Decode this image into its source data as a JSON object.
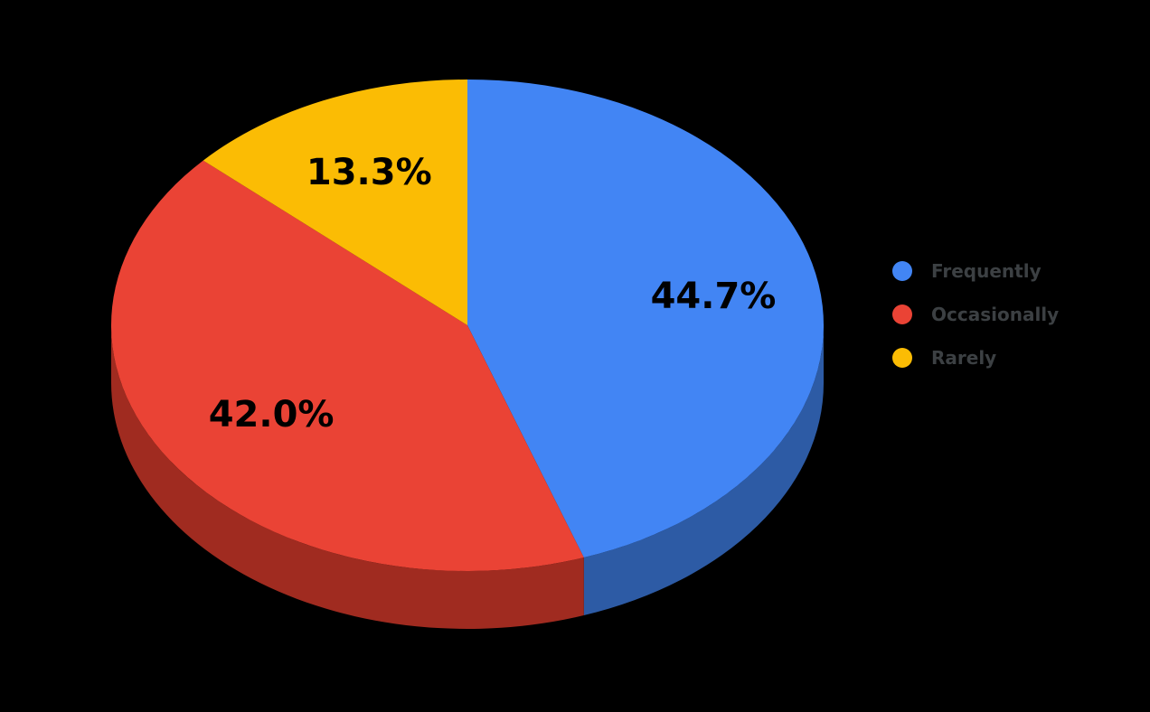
{
  "chart_data": {
    "type": "pie",
    "is_3d": true,
    "title": "",
    "background_color": "#000000",
    "start_angle_deg": 0,
    "direction": "clockwise",
    "label_color": "#000000",
    "legend": {
      "position": "right",
      "text_color": "#3c4043",
      "entries": [
        "Frequently",
        "Occasionally",
        "Rarely"
      ]
    },
    "slices": [
      {
        "label": "Frequently",
        "value": 44.7,
        "display": "44.7%",
        "color": "#4285F4",
        "side_color": "#2D5BA5"
      },
      {
        "label": "Occasionally",
        "value": 42.0,
        "display": "42.0%",
        "color": "#EA4335",
        "side_color": "#A02B20"
      },
      {
        "label": "Rarely",
        "value": 13.3,
        "display": "13.3%",
        "color": "#FBBC04",
        "side_color": ""
      }
    ]
  }
}
